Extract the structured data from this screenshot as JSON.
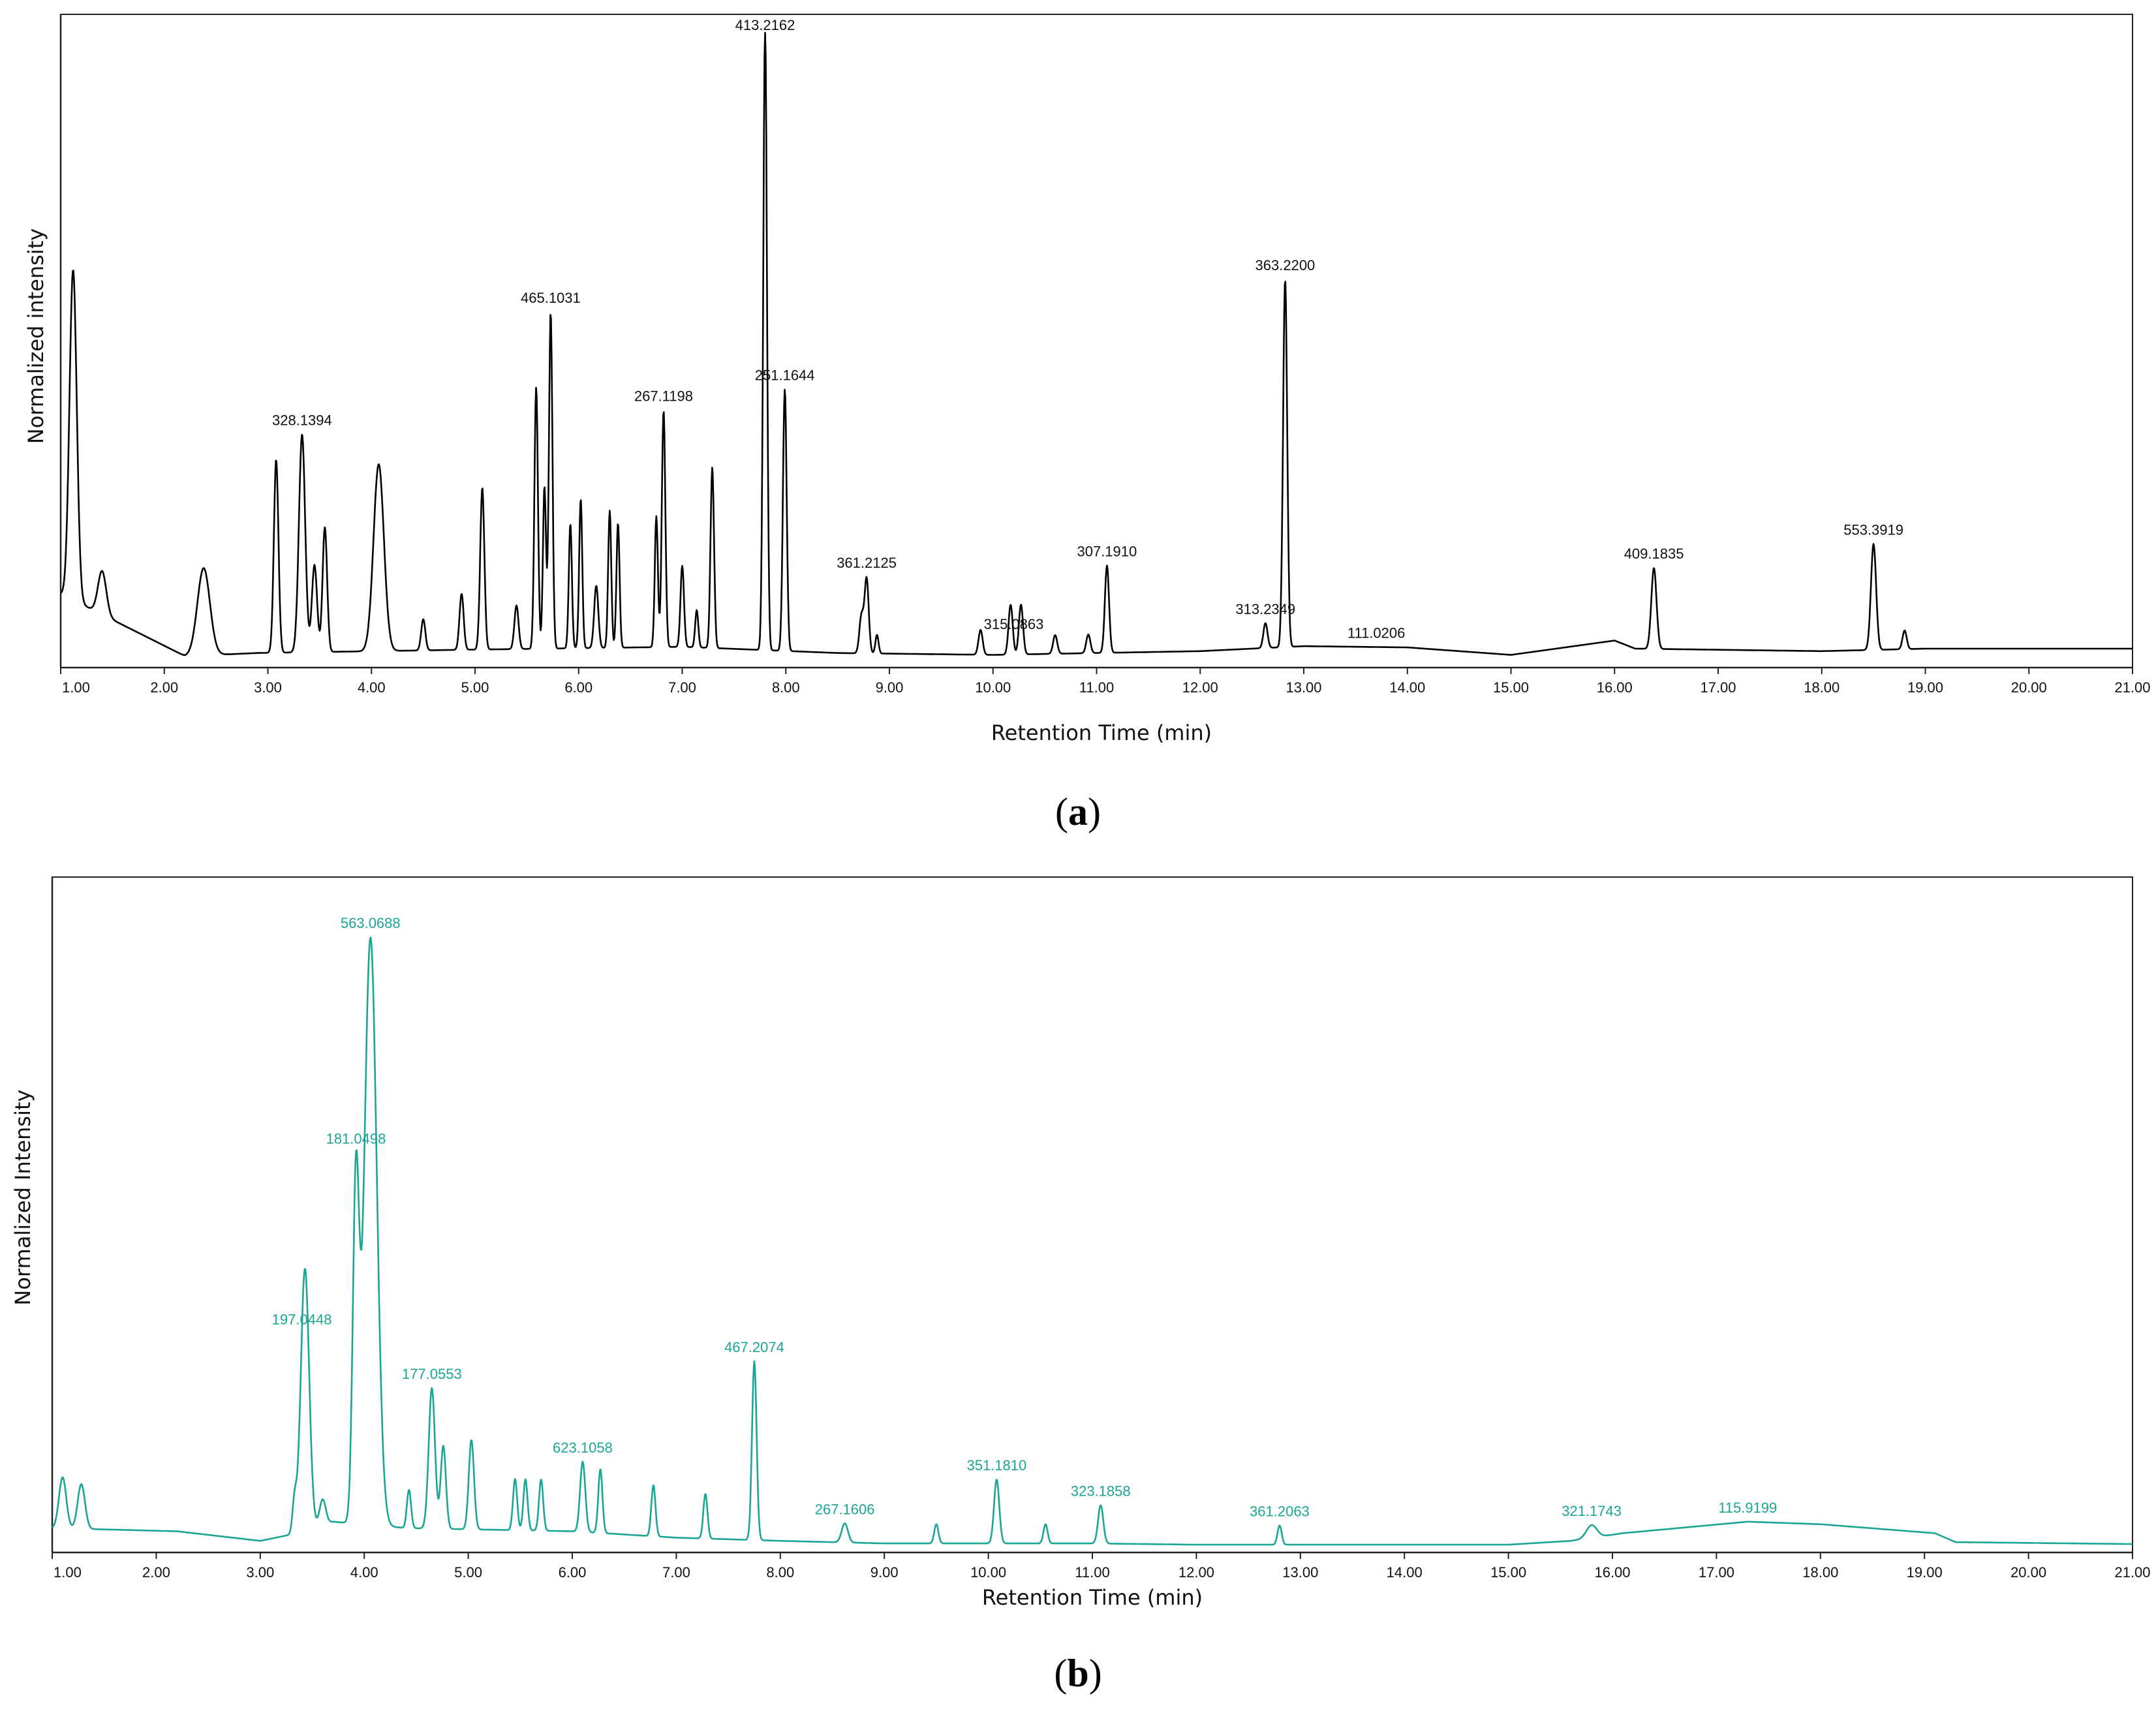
{
  "chart_data": [
    {
      "type": "line",
      "panel_label": "a",
      "color": "#000000",
      "xlabel": "Retention Time (min)",
      "ylabel": "Normalized intensity",
      "xlim": [
        1.0,
        21.0
      ],
      "ylim": [
        0,
        100
      ],
      "x_ticks": [
        "1.00",
        "2.00",
        "3.00",
        "4.00",
        "5.00",
        "6.00",
        "7.00",
        "8.00",
        "9.00",
        "10.00",
        "11.00",
        "12.00",
        "13.00",
        "14.00",
        "15.00",
        "16.00",
        "17.00",
        "18.00",
        "19.00",
        "20.00",
        "21.00"
      ],
      "baseline": [
        [
          1.0,
          11
        ],
        [
          1.6,
          6
        ],
        [
          2.2,
          1
        ],
        [
          2.9,
          1.5
        ],
        [
          4.8,
          2
        ],
        [
          7.0,
          2.5
        ],
        [
          8.5,
          1.5
        ],
        [
          10.0,
          1.2
        ],
        [
          12.0,
          1.8
        ],
        [
          13.0,
          2.6
        ],
        [
          14.0,
          2.4
        ],
        [
          15.0,
          1.2
        ],
        [
          16.0,
          3.5
        ],
        [
          16.2,
          2.2
        ],
        [
          18.0,
          1.8
        ],
        [
          19.0,
          2.2
        ],
        [
          21.0,
          2.2
        ]
      ],
      "peaks": [
        {
          "x": 1.12,
          "h": 53,
          "w": 0.035
        },
        {
          "x": 1.4,
          "h": 7,
          "w": 0.04
        },
        {
          "x": 2.38,
          "h": 14,
          "w": 0.06
        },
        {
          "x": 3.08,
          "h": 31,
          "w": 0.022
        },
        {
          "x": 3.33,
          "h": 35,
          "w": 0.03
        },
        {
          "x": 3.45,
          "h": 14,
          "w": 0.025
        },
        {
          "x": 3.55,
          "h": 20,
          "w": 0.022
        },
        {
          "x": 4.07,
          "h": 30,
          "w": 0.05
        },
        {
          "x": 4.5,
          "h": 5,
          "w": 0.02
        },
        {
          "x": 4.87,
          "h": 9,
          "w": 0.02
        },
        {
          "x": 5.07,
          "h": 26,
          "w": 0.02
        },
        {
          "x": 5.4,
          "h": 7,
          "w": 0.02
        },
        {
          "x": 5.59,
          "h": 42,
          "w": 0.017
        },
        {
          "x": 5.67,
          "h": 26,
          "w": 0.015
        },
        {
          "x": 5.73,
          "h": 54,
          "w": 0.017
        },
        {
          "x": 5.92,
          "h": 20,
          "w": 0.015
        },
        {
          "x": 6.02,
          "h": 24,
          "w": 0.015
        },
        {
          "x": 6.17,
          "h": 10,
          "w": 0.02
        },
        {
          "x": 6.3,
          "h": 22,
          "w": 0.015
        },
        {
          "x": 6.38,
          "h": 20,
          "w": 0.015
        },
        {
          "x": 6.75,
          "h": 21,
          "w": 0.015
        },
        {
          "x": 6.82,
          "h": 38,
          "w": 0.017
        },
        {
          "x": 7.0,
          "h": 13,
          "w": 0.017
        },
        {
          "x": 7.14,
          "h": 6,
          "w": 0.015
        },
        {
          "x": 7.29,
          "h": 29,
          "w": 0.017
        },
        {
          "x": 7.8,
          "h": 100,
          "w": 0.018
        },
        {
          "x": 7.99,
          "h": 42,
          "w": 0.018
        },
        {
          "x": 8.73,
          "h": 6,
          "w": 0.02
        },
        {
          "x": 8.78,
          "h": 12,
          "w": 0.02
        },
        {
          "x": 8.88,
          "h": 3,
          "w": 0.015
        },
        {
          "x": 9.88,
          "h": 4,
          "w": 0.02
        },
        {
          "x": 10.17,
          "h": 8,
          "w": 0.02
        },
        {
          "x": 10.27,
          "h": 8,
          "w": 0.02
        },
        {
          "x": 10.6,
          "h": 3,
          "w": 0.02
        },
        {
          "x": 10.92,
          "h": 3,
          "w": 0.02
        },
        {
          "x": 11.1,
          "h": 14,
          "w": 0.02
        },
        {
          "x": 12.63,
          "h": 4,
          "w": 0.02
        },
        {
          "x": 12.82,
          "h": 59,
          "w": 0.02
        },
        {
          "x": 16.38,
          "h": 13,
          "w": 0.025
        },
        {
          "x": 18.5,
          "h": 17,
          "w": 0.025
        },
        {
          "x": 18.8,
          "h": 3,
          "w": 0.02
        }
      ],
      "annotations": [
        {
          "x": 1.12,
          "label": ""
        },
        {
          "x": 3.33,
          "label": "328.1394"
        },
        {
          "x": 5.73,
          "label": "465.1031"
        },
        {
          "x": 6.82,
          "label": "267.1198"
        },
        {
          "x": 7.8,
          "label": "413.2162"
        },
        {
          "x": 7.99,
          "label": "251.1644"
        },
        {
          "x": 8.78,
          "label": "361.2125"
        },
        {
          "x": 10.2,
          "label": "315.0863"
        },
        {
          "x": 11.1,
          "label": "307.1910"
        },
        {
          "x": 12.63,
          "label": "313.2349"
        },
        {
          "x": 12.82,
          "label": "363.2200"
        },
        {
          "x": 13.7,
          "label": "111.0206"
        },
        {
          "x": 16.38,
          "label": "409.1835"
        },
        {
          "x": 18.5,
          "label": "553.3919"
        }
      ]
    },
    {
      "type": "line",
      "panel_label": "b",
      "color": "#1aa595",
      "xlabel": "Retention Time (min)",
      "ylabel": "Normalized Intensity",
      "xlim": [
        1.0,
        21.0
      ],
      "ylim": [
        0,
        100
      ],
      "x_ticks": [
        "1.00",
        "2.00",
        "3.00",
        "4.00",
        "5.00",
        "6.00",
        "7.00",
        "8.00",
        "9.00",
        "10.00",
        "11.00",
        "12.00",
        "13.00",
        "14.00",
        "15.00",
        "16.00",
        "17.00",
        "18.00",
        "19.00",
        "20.00",
        "21.00"
      ],
      "baseline": [
        [
          1.0,
          3
        ],
        [
          2.2,
          2.5
        ],
        [
          3.0,
          1
        ],
        [
          3.3,
          2
        ],
        [
          3.7,
          4
        ],
        [
          4.4,
          3
        ],
        [
          6.0,
          2.5
        ],
        [
          7.0,
          1.5
        ],
        [
          8.0,
          1
        ],
        [
          9.0,
          0.6
        ],
        [
          11.0,
          0.6
        ],
        [
          12.0,
          0.4
        ],
        [
          15.0,
          0.4
        ],
        [
          15.6,
          1
        ],
        [
          16.1,
          2.2
        ],
        [
          17.3,
          4
        ],
        [
          18.0,
          3.6
        ],
        [
          19.1,
          2.2
        ],
        [
          19.3,
          0.8
        ],
        [
          21.0,
          0.5
        ]
      ],
      "peaks": [
        {
          "x": 1.1,
          "h": 8,
          "w": 0.035
        },
        {
          "x": 1.28,
          "h": 7,
          "w": 0.035
        },
        {
          "x": 3.33,
          "h": 5,
          "w": 0.02
        },
        {
          "x": 3.43,
          "h": 41,
          "w": 0.04
        },
        {
          "x": 3.6,
          "h": 4,
          "w": 0.03
        },
        {
          "x": 3.92,
          "h": 52,
          "w": 0.03
        },
        {
          "x": 4.06,
          "h": 92,
          "w": 0.06
        },
        {
          "x": 4.43,
          "h": 6,
          "w": 0.02
        },
        {
          "x": 4.65,
          "h": 22,
          "w": 0.03
        },
        {
          "x": 4.76,
          "h": 13,
          "w": 0.025
        },
        {
          "x": 5.03,
          "h": 14,
          "w": 0.025
        },
        {
          "x": 5.45,
          "h": 8,
          "w": 0.02
        },
        {
          "x": 5.55,
          "h": 8,
          "w": 0.02
        },
        {
          "x": 5.7,
          "h": 8,
          "w": 0.02
        },
        {
          "x": 6.1,
          "h": 11,
          "w": 0.025
        },
        {
          "x": 6.27,
          "h": 10,
          "w": 0.02
        },
        {
          "x": 6.78,
          "h": 8,
          "w": 0.02
        },
        {
          "x": 7.28,
          "h": 7,
          "w": 0.02
        },
        {
          "x": 7.75,
          "h": 28,
          "w": 0.022
        },
        {
          "x": 8.62,
          "h": 3,
          "w": 0.03
        },
        {
          "x": 9.5,
          "h": 3,
          "w": 0.02
        },
        {
          "x": 10.08,
          "h": 10,
          "w": 0.025
        },
        {
          "x": 10.55,
          "h": 3,
          "w": 0.02
        },
        {
          "x": 11.08,
          "h": 6,
          "w": 0.025
        },
        {
          "x": 12.8,
          "h": 3,
          "w": 0.02
        },
        {
          "x": 15.8,
          "h": 2,
          "w": 0.05
        }
      ],
      "annotations": [
        {
          "x": 3.4,
          "label": "197.0448"
        },
        {
          "x": 3.92,
          "label": "181.0498"
        },
        {
          "x": 4.06,
          "label": "563.0688"
        },
        {
          "x": 4.65,
          "label": "177.0553"
        },
        {
          "x": 6.1,
          "label": "623.1058"
        },
        {
          "x": 7.75,
          "label": "467.2074"
        },
        {
          "x": 8.62,
          "label": "267.1606"
        },
        {
          "x": 10.08,
          "label": "351.1810"
        },
        {
          "x": 11.08,
          "label": "323.1858"
        },
        {
          "x": 12.8,
          "label": "361.2063"
        },
        {
          "x": 15.8,
          "label": "321.1743"
        },
        {
          "x": 17.3,
          "label": "115.9199"
        }
      ]
    }
  ]
}
